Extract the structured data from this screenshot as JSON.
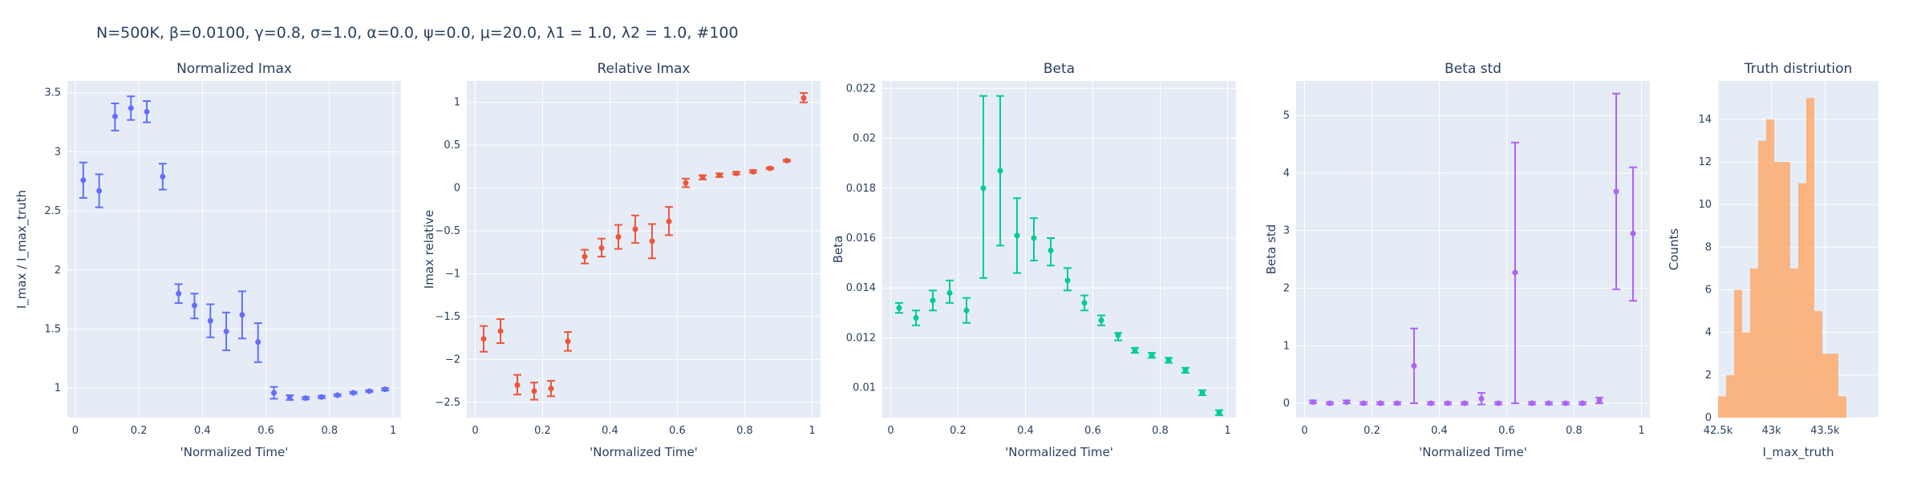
{
  "figure_title": "N=500K, β=0.0100, γ=0.8, σ=1.0,  α=0.0, ψ=0.0, μ=20.0, λ1 = 1.0, λ2 = 1.0, #100",
  "chart_data": [
    {
      "type": "scatter",
      "title": "Normalized Imax",
      "xlabel": "'Normalized Time'",
      "ylabel": "I_max / I_max_truth",
      "color": "#636efa",
      "xlim": [
        -0.025,
        1.025
      ],
      "ylim": [
        0.75,
        3.6
      ],
      "xticks": [
        0,
        0.2,
        0.4,
        0.6,
        0.8,
        1
      ],
      "xtick_labels": [
        "0",
        "0.2",
        "0.4",
        "0.6",
        "0.8",
        "1"
      ],
      "yticks": [
        1,
        1.5,
        2,
        2.5,
        3,
        3.5
      ],
      "ytick_labels": [
        "1",
        "1.5",
        "2",
        "2.5",
        "3",
        "3.5"
      ],
      "points": [
        {
          "x": 0.025,
          "y": 2.76,
          "lo": 2.61,
          "hi": 2.91
        },
        {
          "x": 0.075,
          "y": 2.67,
          "lo": 2.53,
          "hi": 2.81
        },
        {
          "x": 0.125,
          "y": 3.3,
          "lo": 3.18,
          "hi": 3.41
        },
        {
          "x": 0.175,
          "y": 3.37,
          "lo": 3.27,
          "hi": 3.47
        },
        {
          "x": 0.225,
          "y": 3.34,
          "lo": 3.25,
          "hi": 3.43
        },
        {
          "x": 0.275,
          "y": 2.79,
          "lo": 2.68,
          "hi": 2.9
        },
        {
          "x": 0.325,
          "y": 1.8,
          "lo": 1.72,
          "hi": 1.88
        },
        {
          "x": 0.375,
          "y": 1.7,
          "lo": 1.59,
          "hi": 1.8
        },
        {
          "x": 0.425,
          "y": 1.57,
          "lo": 1.43,
          "hi": 1.71
        },
        {
          "x": 0.475,
          "y": 1.48,
          "lo": 1.32,
          "hi": 1.64
        },
        {
          "x": 0.525,
          "y": 1.62,
          "lo": 1.42,
          "hi": 1.82
        },
        {
          "x": 0.575,
          "y": 1.39,
          "lo": 1.22,
          "hi": 1.55
        },
        {
          "x": 0.625,
          "y": 0.96,
          "lo": 0.91,
          "hi": 1.01
        },
        {
          "x": 0.675,
          "y": 0.92,
          "lo": 0.9,
          "hi": 0.94
        },
        {
          "x": 0.725,
          "y": 0.915,
          "lo": 0.905,
          "hi": 0.925
        },
        {
          "x": 0.775,
          "y": 0.925,
          "lo": 0.915,
          "hi": 0.935
        },
        {
          "x": 0.825,
          "y": 0.94,
          "lo": 0.932,
          "hi": 0.948
        },
        {
          "x": 0.875,
          "y": 0.96,
          "lo": 0.952,
          "hi": 0.968
        },
        {
          "x": 0.925,
          "y": 0.975,
          "lo": 0.968,
          "hi": 0.982
        },
        {
          "x": 0.975,
          "y": 0.99,
          "lo": 0.98,
          "hi": 1.0
        }
      ]
    },
    {
      "type": "scatter",
      "title": "Relative Imax",
      "xlabel": "'Normalized Time'",
      "ylabel": "Imax relative",
      "color": "#ef553b",
      "xlim": [
        -0.025,
        1.025
      ],
      "ylim": [
        -2.68,
        1.25
      ],
      "xticks": [
        0,
        0.2,
        0.4,
        0.6,
        0.8,
        1
      ],
      "xtick_labels": [
        "0",
        "0.2",
        "0.4",
        "0.6",
        "0.8",
        "1"
      ],
      "yticks": [
        -2.5,
        -2,
        -1.5,
        -1,
        -0.5,
        0,
        0.5,
        1
      ],
      "ytick_labels": [
        "−2.5",
        "−2",
        "−1.5",
        "−1",
        "−0.5",
        "0",
        "0.5",
        "1"
      ],
      "points": [
        {
          "x": 0.025,
          "y": -1.76,
          "lo": -1.91,
          "hi": -1.61
        },
        {
          "x": 0.075,
          "y": -1.67,
          "lo": -1.81,
          "hi": -1.53
        },
        {
          "x": 0.125,
          "y": -2.3,
          "lo": -2.41,
          "hi": -2.18
        },
        {
          "x": 0.175,
          "y": -2.37,
          "lo": -2.47,
          "hi": -2.27
        },
        {
          "x": 0.225,
          "y": -2.34,
          "lo": -2.43,
          "hi": -2.25
        },
        {
          "x": 0.275,
          "y": -1.79,
          "lo": -1.9,
          "hi": -1.68
        },
        {
          "x": 0.325,
          "y": -0.8,
          "lo": -0.88,
          "hi": -0.72
        },
        {
          "x": 0.375,
          "y": -0.7,
          "lo": -0.8,
          "hi": -0.59
        },
        {
          "x": 0.425,
          "y": -0.57,
          "lo": -0.71,
          "hi": -0.43
        },
        {
          "x": 0.475,
          "y": -0.48,
          "lo": -0.64,
          "hi": -0.32
        },
        {
          "x": 0.525,
          "y": -0.62,
          "lo": -0.82,
          "hi": -0.42
        },
        {
          "x": 0.575,
          "y": -0.39,
          "lo": -0.55,
          "hi": -0.22
        },
        {
          "x": 0.625,
          "y": 0.06,
          "lo": 0.01,
          "hi": 0.11
        },
        {
          "x": 0.675,
          "y": 0.13,
          "lo": 0.1,
          "hi": 0.15
        },
        {
          "x": 0.725,
          "y": 0.15,
          "lo": 0.13,
          "hi": 0.17
        },
        {
          "x": 0.775,
          "y": 0.17,
          "lo": 0.16,
          "hi": 0.19
        },
        {
          "x": 0.825,
          "y": 0.19,
          "lo": 0.18,
          "hi": 0.21
        },
        {
          "x": 0.875,
          "y": 0.23,
          "lo": 0.22,
          "hi": 0.24
        },
        {
          "x": 0.925,
          "y": 0.32,
          "lo": 0.31,
          "hi": 0.33
        },
        {
          "x": 0.975,
          "y": 1.05,
          "lo": 1.0,
          "hi": 1.11
        }
      ]
    },
    {
      "type": "scatter",
      "title": "Beta",
      "xlabel": "'Normalized Time'",
      "ylabel": "Beta",
      "color": "#00cc96",
      "xlim": [
        -0.025,
        1.025
      ],
      "ylim": [
        0.0088,
        0.0223
      ],
      "xticks": [
        0,
        0.2,
        0.4,
        0.6,
        0.8,
        1
      ],
      "xtick_labels": [
        "0",
        "0.2",
        "0.4",
        "0.6",
        "0.8",
        "1"
      ],
      "yticks": [
        0.01,
        0.012,
        0.014,
        0.016,
        0.018,
        0.02,
        0.022
      ],
      "ytick_labels": [
        "0.01",
        "0.012",
        "0.014",
        "0.016",
        "0.018",
        "0.02",
        "0.022"
      ],
      "points": [
        {
          "x": 0.025,
          "y": 0.0132,
          "lo": 0.013,
          "hi": 0.0134
        },
        {
          "x": 0.075,
          "y": 0.0128,
          "lo": 0.0125,
          "hi": 0.0131
        },
        {
          "x": 0.125,
          "y": 0.0135,
          "lo": 0.0131,
          "hi": 0.0139
        },
        {
          "x": 0.175,
          "y": 0.0138,
          "lo": 0.0134,
          "hi": 0.0143
        },
        {
          "x": 0.225,
          "y": 0.0131,
          "lo": 0.0126,
          "hi": 0.0136
        },
        {
          "x": 0.275,
          "y": 0.018,
          "lo": 0.0144,
          "hi": 0.0217
        },
        {
          "x": 0.325,
          "y": 0.0187,
          "lo": 0.0157,
          "hi": 0.0217
        },
        {
          "x": 0.375,
          "y": 0.0161,
          "lo": 0.0146,
          "hi": 0.0176
        },
        {
          "x": 0.425,
          "y": 0.016,
          "lo": 0.0151,
          "hi": 0.0168
        },
        {
          "x": 0.475,
          "y": 0.0155,
          "lo": 0.0149,
          "hi": 0.016
        },
        {
          "x": 0.525,
          "y": 0.0143,
          "lo": 0.0139,
          "hi": 0.0148
        },
        {
          "x": 0.575,
          "y": 0.0134,
          "lo": 0.0131,
          "hi": 0.0137
        },
        {
          "x": 0.625,
          "y": 0.0127,
          "lo": 0.0125,
          "hi": 0.0129
        },
        {
          "x": 0.675,
          "y": 0.0121,
          "lo": 0.0119,
          "hi": 0.0122
        },
        {
          "x": 0.725,
          "y": 0.0115,
          "lo": 0.0114,
          "hi": 0.0116
        },
        {
          "x": 0.775,
          "y": 0.0113,
          "lo": 0.0112,
          "hi": 0.0114
        },
        {
          "x": 0.825,
          "y": 0.0111,
          "lo": 0.011,
          "hi": 0.0112
        },
        {
          "x": 0.875,
          "y": 0.0107,
          "lo": 0.0106,
          "hi": 0.0108
        },
        {
          "x": 0.925,
          "y": 0.0098,
          "lo": 0.0097,
          "hi": 0.0099
        },
        {
          "x": 0.975,
          "y": 0.009,
          "lo": 0.0089,
          "hi": 0.0091
        }
      ]
    },
    {
      "type": "scatter",
      "title": "Beta std",
      "xlabel": "'Normalized Time'",
      "ylabel": "Beta std",
      "color": "#ab63fa",
      "xlim": [
        -0.025,
        1.025
      ],
      "ylim": [
        -0.25,
        5.6
      ],
      "xticks": [
        0,
        0.2,
        0.4,
        0.6,
        0.8,
        1
      ],
      "xtick_labels": [
        "0",
        "0.2",
        "0.4",
        "0.6",
        "0.8",
        "1"
      ],
      "yticks": [
        0,
        1,
        2,
        3,
        4,
        5
      ],
      "ytick_labels": [
        "0",
        "1",
        "2",
        "3",
        "4",
        "5"
      ],
      "points": [
        {
          "x": 0.025,
          "y": 0.02,
          "lo": 0.0,
          "hi": 0.05
        },
        {
          "x": 0.075,
          "y": 0.0,
          "lo": -0.02,
          "hi": 0.02
        },
        {
          "x": 0.125,
          "y": 0.02,
          "lo": 0.0,
          "hi": 0.05
        },
        {
          "x": 0.175,
          "y": 0.0,
          "lo": -0.02,
          "hi": 0.02
        },
        {
          "x": 0.225,
          "y": 0.0,
          "lo": -0.02,
          "hi": 0.02
        },
        {
          "x": 0.275,
          "y": 0.0,
          "lo": -0.02,
          "hi": 0.02
        },
        {
          "x": 0.325,
          "y": 0.65,
          "lo": 0.0,
          "hi": 1.3
        },
        {
          "x": 0.375,
          "y": 0.0,
          "lo": -0.02,
          "hi": 0.02
        },
        {
          "x": 0.425,
          "y": 0.0,
          "lo": -0.02,
          "hi": 0.02
        },
        {
          "x": 0.475,
          "y": 0.0,
          "lo": -0.02,
          "hi": 0.02
        },
        {
          "x": 0.525,
          "y": 0.08,
          "lo": -0.02,
          "hi": 0.18
        },
        {
          "x": 0.575,
          "y": 0.0,
          "lo": -0.02,
          "hi": 0.02
        },
        {
          "x": 0.625,
          "y": 2.27,
          "lo": 0.0,
          "hi": 4.53
        },
        {
          "x": 0.675,
          "y": 0.0,
          "lo": -0.02,
          "hi": 0.02
        },
        {
          "x": 0.725,
          "y": 0.0,
          "lo": -0.02,
          "hi": 0.02
        },
        {
          "x": 0.775,
          "y": 0.0,
          "lo": -0.02,
          "hi": 0.02
        },
        {
          "x": 0.825,
          "y": 0.0,
          "lo": -0.02,
          "hi": 0.02
        },
        {
          "x": 0.875,
          "y": 0.05,
          "lo": 0.0,
          "hi": 0.1
        },
        {
          "x": 0.925,
          "y": 3.68,
          "lo": 1.98,
          "hi": 5.38
        },
        {
          "x": 0.975,
          "y": 2.95,
          "lo": 1.78,
          "hi": 4.1
        }
      ]
    },
    {
      "type": "histogram",
      "title": "Truth distriution",
      "xlabel": "I_max_truth",
      "ylabel": "Counts",
      "color": "#ffa15a",
      "xlim": [
        42500,
        44000
      ],
      "ylim": [
        0,
        15.8
      ],
      "xticks": [
        42500,
        43000,
        43500
      ],
      "xtick_labels": [
        "42.5k",
        "43k",
        "43.5k"
      ],
      "yticks": [
        0,
        2,
        4,
        6,
        8,
        10,
        12,
        14
      ],
      "ytick_labels": [
        "0",
        "2",
        "4",
        "6",
        "8",
        "10",
        "12",
        "14"
      ],
      "bin_width": 75,
      "bins": [
        {
          "x0": 42500,
          "count": 1
        },
        {
          "x0": 42575,
          "count": 2
        },
        {
          "x0": 42650,
          "count": 6
        },
        {
          "x0": 42725,
          "count": 4
        },
        {
          "x0": 42800,
          "count": 7
        },
        {
          "x0": 42875,
          "count": 13
        },
        {
          "x0": 42950,
          "count": 14
        },
        {
          "x0": 43025,
          "count": 12
        },
        {
          "x0": 43100,
          "count": 12
        },
        {
          "x0": 43175,
          "count": 7
        },
        {
          "x0": 43250,
          "count": 11
        },
        {
          "x0": 43325,
          "count": 15
        },
        {
          "x0": 43400,
          "count": 5
        },
        {
          "x0": 43475,
          "count": 3
        },
        {
          "x0": 43550,
          "count": 3
        },
        {
          "x0": 43625,
          "count": 1
        }
      ]
    }
  ]
}
